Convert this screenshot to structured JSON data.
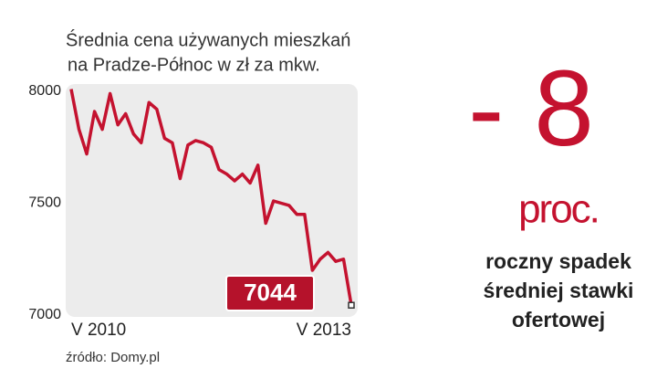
{
  "chart_data": {
    "type": "line",
    "title": [
      "Średnia cena używanych mieszkań",
      "na Pradze-Północ w zł za mkw."
    ],
    "categories": [
      "V 2010",
      null,
      null,
      null,
      null,
      null,
      null,
      null,
      null,
      null,
      null,
      null,
      null,
      null,
      null,
      null,
      null,
      null,
      null,
      null,
      null,
      null,
      null,
      null,
      null,
      null,
      null,
      null,
      null,
      null,
      null,
      null,
      null,
      null,
      null,
      null,
      "V 2013"
    ],
    "series": [
      {
        "color": "#c4122f",
        "values": [
          8010,
          7830,
          7720,
          7910,
          7830,
          7990,
          7850,
          7900,
          7810,
          7770,
          7950,
          7920,
          7790,
          7770,
          7610,
          7760,
          7780,
          7770,
          7750,
          7650,
          7630,
          7600,
          7630,
          7590,
          7670,
          7410,
          7510,
          7500,
          7490,
          7450,
          7450,
          7200,
          7250,
          7280,
          7240,
          7250,
          7044
        ]
      }
    ],
    "ylim": [
      7000,
      8000
    ],
    "yticks": [
      7000,
      7500,
      8000
    ],
    "grid": false,
    "source": "źródło: Domy.pl",
    "highlight": {
      "value": "- 8",
      "unit": "proc.",
      "caption": [
        "roczny spadek",
        "średniej stawki",
        "ofertowej"
      ]
    }
  }
}
